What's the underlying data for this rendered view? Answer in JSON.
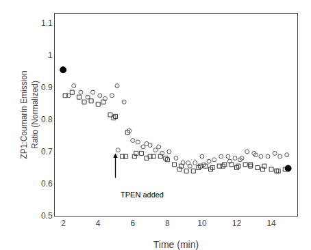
{
  "chart_data": {
    "type": "scatter",
    "xlabel": "Time (min)",
    "ylabel": "ZP1:Coumarin Emission\nRatio (Normalized)",
    "xlim": [
      1.5,
      15.5
    ],
    "ylim": [
      0.5,
      1.13
    ],
    "xticks": [
      2,
      4,
      6,
      8,
      10,
      12,
      14
    ],
    "yticks": [
      0.5,
      0.6,
      0.7,
      0.8,
      0.9,
      1,
      1.1
    ],
    "grid": false,
    "series": [
      {
        "marker": "open_circle",
        "color": "#555555",
        "x": [
          2.3,
          2.6,
          3.0,
          3.4,
          3.7,
          4.1,
          4.4,
          4.8,
          5.1,
          5.5,
          5.8,
          6.3,
          6.6,
          7.0,
          7.3,
          7.7,
          8.1,
          8.5,
          8.9,
          9.2,
          9.6,
          10.0,
          10.4,
          10.7,
          11.1,
          11.5,
          11.9,
          12.2,
          12.6,
          13.0,
          13.4,
          13.8,
          14.2,
          14.5,
          14.9
        ],
        "values": [
          0.875,
          0.905,
          0.885,
          0.87,
          0.885,
          0.875,
          0.865,
          0.875,
          0.905,
          0.855,
          0.765,
          0.73,
          0.715,
          0.72,
          0.705,
          0.695,
          0.7,
          0.68,
          0.665,
          0.665,
          0.665,
          0.685,
          0.67,
          0.675,
          0.685,
          0.685,
          0.68,
          0.675,
          0.7,
          0.695,
          0.685,
          0.685,
          0.695,
          0.685,
          0.69
        ]
      },
      {
        "marker": "open_square",
        "color": "#333333",
        "x": [
          2.1,
          2.5,
          2.9,
          3.2,
          3.6,
          4.0,
          4.3,
          4.7,
          5.0,
          5.4,
          5.7,
          6.1,
          6.5,
          6.8,
          7.2,
          7.6,
          8.0,
          8.4,
          8.7,
          9.1,
          9.5,
          9.9,
          10.2,
          10.6,
          11.0,
          11.3,
          11.7,
          12.1,
          12.5,
          12.8,
          13.2,
          13.6,
          14.0,
          14.4,
          14.8
        ],
        "values": [
          0.875,
          0.885,
          0.87,
          0.855,
          0.858,
          0.848,
          0.855,
          0.815,
          0.81,
          0.685,
          0.76,
          0.685,
          0.695,
          0.68,
          0.685,
          0.685,
          0.675,
          0.66,
          0.645,
          0.64,
          0.64,
          0.655,
          0.655,
          0.65,
          0.655,
          0.66,
          0.66,
          0.655,
          0.66,
          0.655,
          0.65,
          0.655,
          0.645,
          0.64,
          0.645
        ]
      },
      {
        "marker": "open_circle",
        "color": "#555555",
        "x": [
          5.15,
          6.0,
          6.8,
          7.5,
          9.3,
          10.1,
          11.6,
          12.3,
          13.1
        ],
        "values": [
          0.705,
          0.735,
          0.725,
          0.715,
          0.655,
          0.66,
          0.67,
          0.68,
          0.69
        ]
      },
      {
        "marker": "open_square",
        "color": "#333333",
        "x": [
          4.9,
          5.6,
          6.2,
          7.0,
          7.9,
          8.8,
          9.8,
          10.5,
          11.2,
          12.0,
          12.8,
          13.5,
          14.3
        ],
        "values": [
          0.805,
          0.685,
          0.695,
          0.685,
          0.68,
          0.655,
          0.65,
          0.645,
          0.655,
          0.65,
          0.66,
          0.645,
          0.64
        ]
      },
      {
        "marker": "circle",
        "color": "#000000",
        "x": [
          1.98
        ],
        "values": [
          0.955
        ]
      },
      {
        "marker": "circle",
        "color": "#000000",
        "x": [
          14.97
        ],
        "values": [
          0.648
        ]
      }
    ],
    "arrows": [
      {
        "x": 5.0,
        "y_start": 0.615,
        "y_end": 0.695
      }
    ],
    "annotations": [
      {
        "text": "TPEN added",
        "x": 5.2,
        "y": 0.582
      }
    ]
  }
}
